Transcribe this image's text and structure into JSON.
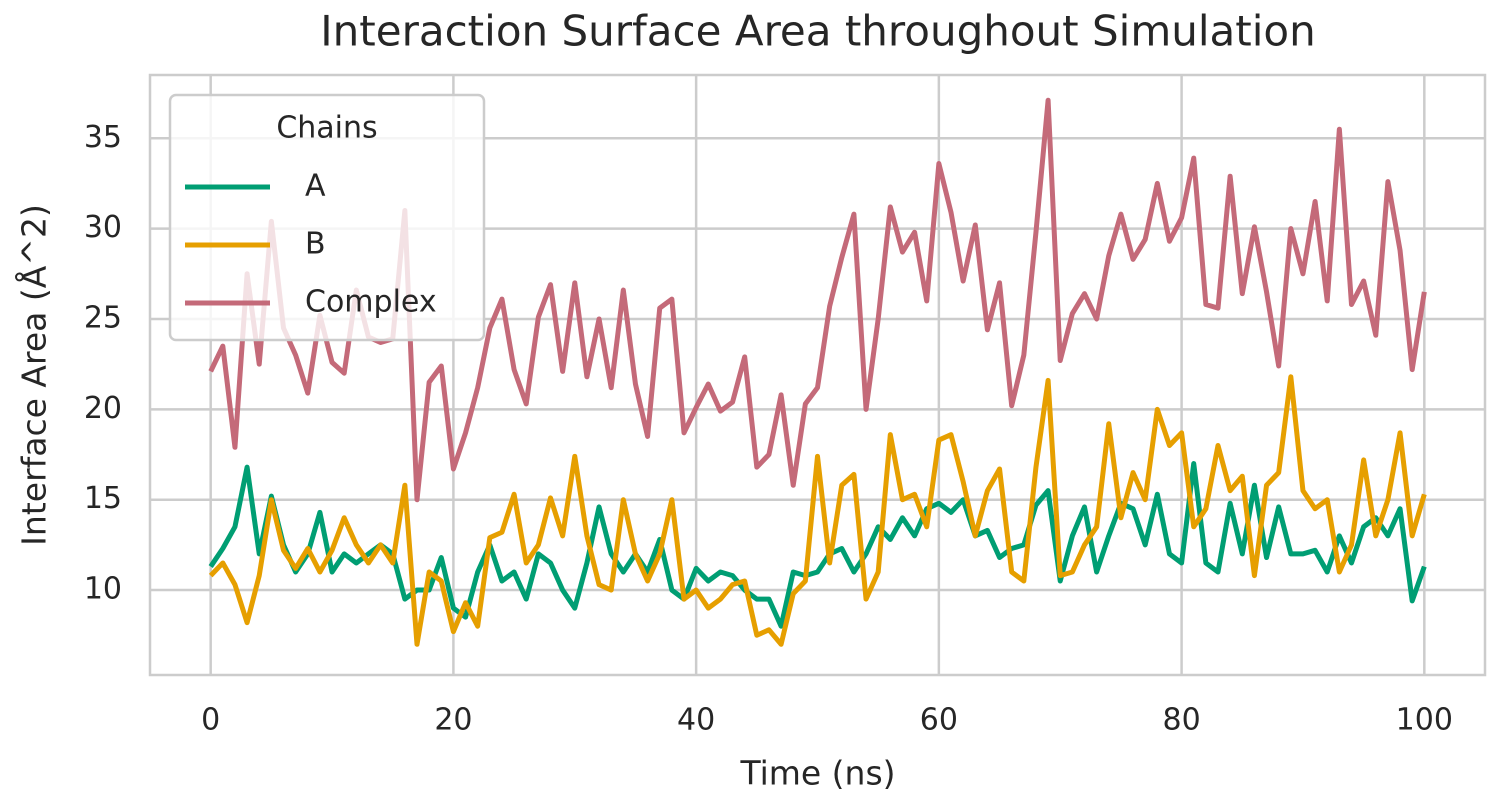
{
  "chart_data": {
    "type": "line",
    "title": "Interaction Surface Area throughout Simulation",
    "x_label": "Time (ns)",
    "y_label": "Interface Area (Å^2)",
    "legend_title": "Chains",
    "legend": "upper left",
    "grid": true,
    "xlim": [
      -5,
      105
    ],
    "ylim": [
      5.3,
      38.5
    ],
    "xticks": [
      0,
      20,
      40,
      60,
      80,
      100
    ],
    "yticks": [
      10,
      15,
      20,
      25,
      30,
      35
    ],
    "x": [
      0,
      1,
      2,
      3,
      4,
      5,
      6,
      7,
      8,
      9,
      10,
      11,
      12,
      13,
      14,
      15,
      16,
      17,
      18,
      19,
      20,
      21,
      22,
      23,
      24,
      25,
      26,
      27,
      28,
      29,
      30,
      31,
      32,
      33,
      34,
      35,
      36,
      37,
      38,
      39,
      40,
      41,
      42,
      43,
      44,
      45,
      46,
      47,
      48,
      49,
      50,
      51,
      52,
      53,
      54,
      55,
      56,
      57,
      58,
      59,
      60,
      61,
      62,
      63,
      64,
      65,
      66,
      67,
      68,
      69,
      70,
      71,
      72,
      73,
      74,
      75,
      76,
      77,
      78,
      79,
      80,
      81,
      82,
      83,
      84,
      85,
      86,
      87,
      88,
      89,
      90,
      91,
      92,
      93,
      94,
      95,
      96,
      97,
      98,
      99,
      100
    ],
    "series": [
      {
        "name": "A",
        "color": "#009e73",
        "values": [
          11.3,
          12.3,
          13.5,
          16.8,
          12.0,
          15.2,
          12.5,
          11.0,
          12.0,
          14.3,
          11.0,
          12.0,
          11.5,
          12.0,
          12.5,
          12.0,
          9.5,
          10.0,
          10.0,
          11.8,
          9.0,
          8.5,
          11.0,
          12.5,
          10.5,
          11.0,
          9.5,
          12.0,
          11.5,
          10.0,
          9.0,
          11.5,
          14.6,
          12.0,
          11.0,
          12.0,
          11.0,
          12.8,
          10.0,
          9.5,
          11.2,
          10.5,
          11.0,
          10.8,
          10.0,
          9.5,
          9.5,
          8.0,
          11.0,
          10.8,
          11.0,
          12.0,
          12.3,
          11.0,
          12.0,
          13.5,
          12.8,
          14.0,
          13.0,
          14.5,
          14.8,
          14.3,
          15.0,
          13.0,
          13.3,
          11.8,
          12.3,
          12.5,
          14.7,
          15.5,
          10.5,
          13.0,
          14.6,
          11.0,
          13.0,
          14.8,
          14.5,
          12.5,
          15.3,
          12.0,
          11.5,
          17.0,
          11.5,
          11.0,
          14.8,
          12.0,
          15.8,
          11.8,
          14.6,
          12.0,
          12.0,
          12.2,
          11.0,
          13.0,
          11.5,
          13.5,
          14.0,
          13.0,
          14.5,
          9.4,
          11.3
        ]
      },
      {
        "name": "B",
        "color": "#e69f00",
        "values": [
          10.8,
          11.5,
          10.3,
          8.2,
          10.8,
          15.0,
          12.2,
          11.2,
          12.3,
          11.0,
          12.2,
          14.0,
          12.5,
          11.5,
          12.5,
          11.5,
          15.8,
          7.0,
          11.0,
          10.5,
          7.7,
          9.3,
          8.0,
          12.9,
          13.2,
          15.3,
          11.5,
          12.5,
          15.1,
          13.0,
          17.4,
          13.0,
          10.3,
          10.0,
          15.0,
          12.0,
          10.5,
          12.0,
          15.0,
          9.5,
          10.0,
          9.0,
          9.5,
          10.3,
          10.5,
          7.5,
          7.8,
          7.0,
          9.8,
          10.5,
          17.4,
          11.5,
          15.8,
          16.4,
          9.5,
          11.0,
          18.6,
          15.0,
          15.3,
          13.5,
          18.3,
          18.6,
          16.0,
          13.0,
          15.5,
          16.7,
          11.0,
          10.5,
          16.8,
          21.6,
          10.8,
          11.0,
          12.5,
          13.5,
          19.2,
          14.0,
          16.5,
          15.0,
          20.0,
          18.0,
          18.7,
          13.5,
          14.5,
          18.0,
          15.5,
          16.3,
          10.8,
          15.8,
          16.5,
          21.8,
          15.5,
          14.5,
          15.0,
          11.0,
          12.5,
          17.2,
          13.0,
          15.0,
          18.7,
          13.0,
          15.3
        ]
      },
      {
        "name": "Complex",
        "color": "#c46a79",
        "values": [
          22.1,
          23.5,
          17.9,
          27.5,
          22.5,
          30.4,
          24.5,
          23.0,
          20.9,
          25.2,
          22.6,
          22.0,
          26.6,
          24.0,
          23.7,
          23.9,
          31.0,
          15.0,
          21.5,
          22.4,
          16.7,
          18.7,
          21.2,
          24.5,
          26.1,
          22.2,
          20.3,
          25.1,
          26.9,
          22.1,
          27.0,
          21.8,
          25.0,
          21.2,
          26.6,
          21.4,
          18.5,
          25.6,
          26.1,
          18.7,
          20.1,
          21.4,
          19.9,
          20.4,
          22.9,
          16.8,
          17.5,
          20.8,
          15.8,
          20.3,
          21.2,
          25.7,
          28.4,
          30.8,
          20.0,
          25.0,
          31.2,
          28.7,
          29.8,
          26.0,
          33.6,
          30.9,
          27.1,
          30.2,
          24.4,
          27.0,
          20.2,
          23.0,
          29.8,
          37.1,
          22.7,
          25.3,
          26.4,
          25.0,
          28.5,
          30.8,
          28.3,
          29.4,
          32.5,
          29.3,
          30.6,
          33.9,
          25.8,
          25.6,
          32.9,
          26.4,
          30.1,
          26.5,
          22.4,
          30.0,
          27.5,
          31.5,
          26.0,
          35.5,
          25.8,
          27.1,
          24.1,
          32.6,
          28.8,
          22.2,
          26.5
        ]
      }
    ]
  }
}
